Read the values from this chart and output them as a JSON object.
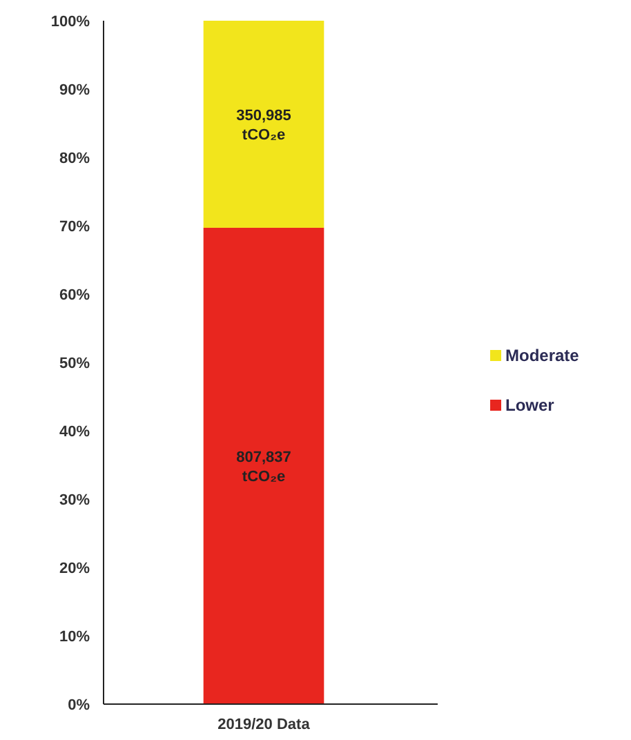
{
  "chart_data": {
    "type": "bar",
    "stacked": true,
    "categories": [
      "2019/20 Data"
    ],
    "series": [
      {
        "name": "Lower",
        "color": "#e8261f",
        "values": [
          69.7
        ]
      },
      {
        "name": "Moderate",
        "color": "#f2e51c",
        "values": [
          30.3
        ]
      }
    ],
    "annotations": [
      "807,837 tCO₂e",
      "350,985 tCO₂e"
    ],
    "ylim": [
      0,
      100
    ],
    "yticks": [
      {
        "value": 0,
        "label": "0%"
      },
      {
        "value": 10,
        "label": "10%"
      },
      {
        "value": 20,
        "label": "20%"
      },
      {
        "value": 30,
        "label": "30%"
      },
      {
        "value": 40,
        "label": "40%"
      },
      {
        "value": 50,
        "label": "50%"
      },
      {
        "value": 60,
        "label": "60%"
      },
      {
        "value": 70,
        "label": "70%"
      },
      {
        "value": 80,
        "label": "80%"
      },
      {
        "value": 90,
        "label": "90%"
      },
      {
        "value": 100,
        "label": "100%"
      }
    ],
    "grid": false,
    "legend": "right"
  }
}
